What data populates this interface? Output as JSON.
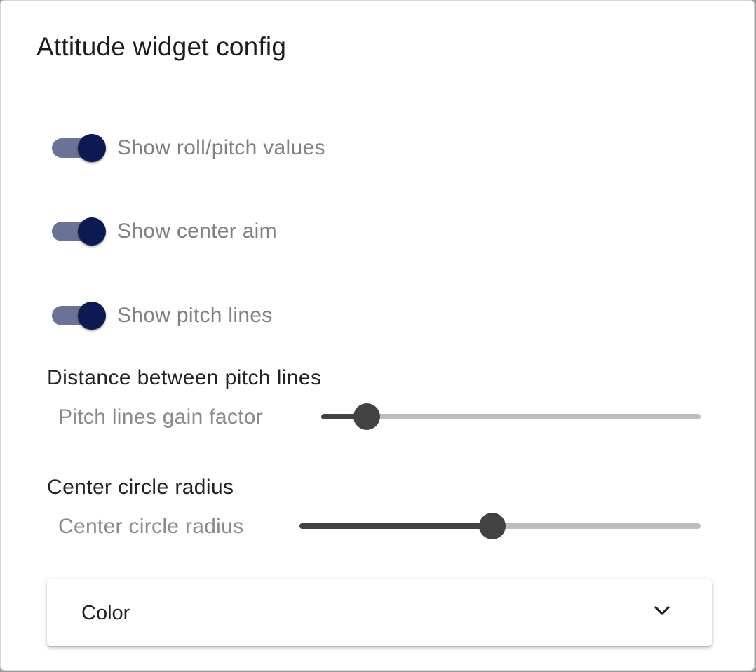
{
  "dialog": {
    "title": "Attitude widget config"
  },
  "toggles": [
    {
      "label": "Show roll/pitch values",
      "checked": true
    },
    {
      "label": "Show center aim",
      "checked": true
    },
    {
      "label": "Show pitch lines",
      "checked": true
    }
  ],
  "pitch_lines": {
    "heading": "Distance between pitch lines",
    "slider_label": "Pitch lines gain factor",
    "value_fraction": 0.12
  },
  "center_circle": {
    "heading": "Center circle radius",
    "slider_label": "Center circle radius",
    "value_fraction": 0.48
  },
  "color_panel": {
    "label": "Color",
    "expanded": false,
    "icon": "chevron-down-icon"
  },
  "colors": {
    "switch_track": "#6a7396",
    "switch_thumb": "#0c1a52",
    "slider_active": "#424242",
    "slider_rail": "#bdbdbd"
  }
}
